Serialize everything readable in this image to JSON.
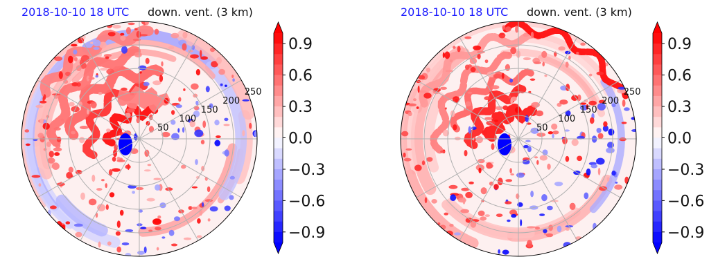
{
  "colors": {
    "negative": "#0000ff",
    "zero": "#ffffff",
    "positive": "#ff0000",
    "title_date": "#1a1aff",
    "grid": "#b0b0b0"
  },
  "chart_data": [
    {
      "type": "heatmap",
      "projection": "polar",
      "title_left": "2018-10-10 18 UTC",
      "title_right": "down. vent. (3 km)",
      "radial_ticks": [
        "50",
        "100",
        "150",
        "200",
        "250"
      ],
      "grid": true,
      "colorbar": {
        "ticks": [
          "0.9",
          "0.6",
          "0.3",
          "0.0",
          "−0.3",
          "−0.6",
          "−0.9"
        ],
        "range": [
          -1.0,
          1.0
        ],
        "levels": 20,
        "extend": "both",
        "colormap": "bwr"
      }
    },
    {
      "type": "heatmap",
      "projection": "polar",
      "title_left": "2018-10-10 18 UTC",
      "title_right": "down. vent. (3 km)",
      "radial_ticks": [
        "50",
        "100",
        "150",
        "200",
        "250"
      ],
      "grid": true,
      "colorbar": {
        "ticks": [
          "0.9",
          "0.6",
          "0.3",
          "0.0",
          "−0.3",
          "−0.6",
          "−0.9"
        ],
        "range": [
          -1.0,
          1.0
        ],
        "levels": 20,
        "extend": "both",
        "colormap": "bwr"
      }
    }
  ]
}
